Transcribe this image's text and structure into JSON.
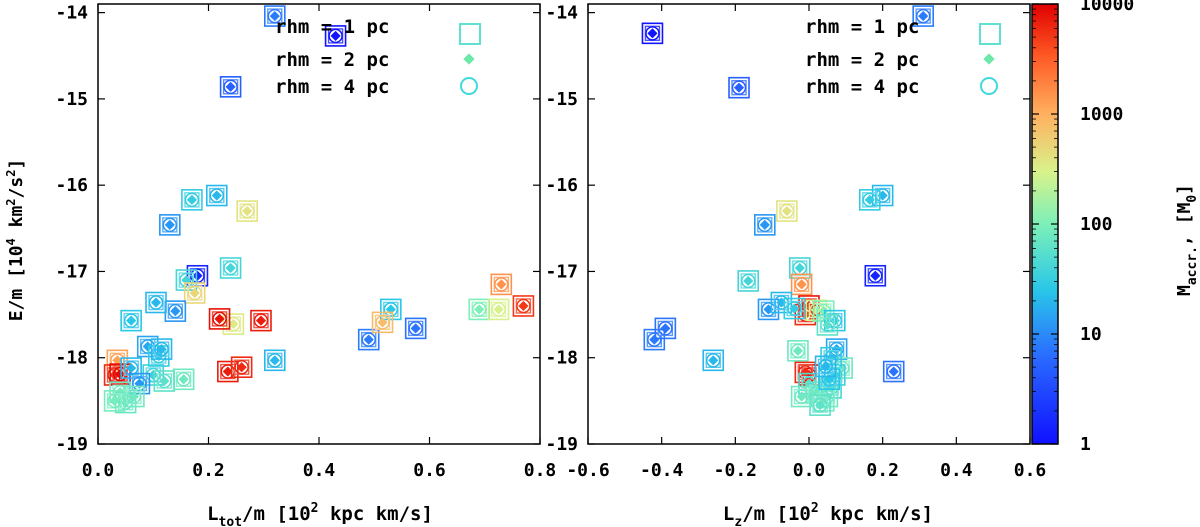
{
  "chart_data": [
    {
      "type": "scatter",
      "xlabel": {
        "base": "L",
        "sub": "tot",
        "rest": "/m [10",
        "sup": "2",
        "tail": " kpc km/s]"
      },
      "ylabel": {
        "base": "E/m [10",
        "sup1": "4",
        "mid": " km",
        "sup2": "2",
        "mid2": "/s",
        "sup3": "2",
        "tail": "]"
      },
      "xlim": [
        0.0,
        0.8
      ],
      "ylim": [
        -19,
        -13.9
      ],
      "x_ticks": [
        "0.0",
        "0.2",
        "0.4",
        "0.6",
        "0.8"
      ],
      "x_tick_values": [
        0.0,
        0.2,
        0.4,
        0.6,
        0.8
      ],
      "y_ticks": [
        "-19",
        "-18",
        "-17",
        "-16",
        "-15",
        "-14"
      ],
      "y_tick_values": [
        -19,
        -18,
        -17,
        -16,
        -15,
        -14
      ],
      "legend": [
        "rhm = 1 pc",
        "rhm = 2 pc",
        "rhm = 4 pc"
      ],
      "legend_position": "top-right",
      "points": [
        [
          0.32,
          -14.04,
          8
        ],
        [
          0.43,
          -14.27,
          1.1
        ],
        [
          0.24,
          -14.86,
          5
        ],
        [
          0.215,
          -16.12,
          20
        ],
        [
          0.17,
          -16.17,
          30
        ],
        [
          0.13,
          -16.46,
          12
        ],
        [
          0.27,
          -16.3,
          400
        ],
        [
          0.24,
          -16.96,
          40
        ],
        [
          0.18,
          -17.05,
          1.5
        ],
        [
          0.16,
          -17.1,
          40
        ],
        [
          0.175,
          -17.25,
          500
        ],
        [
          0.245,
          -17.61,
          350
        ],
        [
          0.22,
          -17.55,
          8000
        ],
        [
          0.295,
          -17.57,
          7000
        ],
        [
          0.14,
          -17.46,
          12
        ],
        [
          0.105,
          -17.36,
          20
        ],
        [
          0.06,
          -17.57,
          25
        ],
        [
          0.09,
          -17.87,
          15
        ],
        [
          0.035,
          -18.03,
          1200
        ],
        [
          0.11,
          -17.98,
          30
        ],
        [
          0.115,
          -17.9,
          20
        ],
        [
          0.03,
          -18.2,
          6000
        ],
        [
          0.04,
          -18.19,
          9000
        ],
        [
          0.06,
          -18.12,
          20
        ],
        [
          0.1,
          -18.2,
          35
        ],
        [
          0.075,
          -18.3,
          12
        ],
        [
          0.12,
          -18.27,
          60
        ],
        [
          0.155,
          -18.25,
          80
        ],
        [
          0.04,
          -18.4,
          80
        ],
        [
          0.05,
          -18.52,
          70
        ],
        [
          0.065,
          -18.45,
          80
        ],
        [
          0.03,
          -18.5,
          90
        ],
        [
          0.235,
          -18.16,
          7000
        ],
        [
          0.26,
          -18.11,
          6000
        ],
        [
          0.32,
          -18.03,
          20
        ],
        [
          0.49,
          -17.79,
          8
        ],
        [
          0.53,
          -17.44,
          25
        ],
        [
          0.515,
          -17.59,
          800
        ],
        [
          0.575,
          -17.66,
          7
        ],
        [
          0.69,
          -17.44,
          100
        ],
        [
          0.725,
          -17.44,
          300
        ],
        [
          0.73,
          -17.15,
          1500
        ],
        [
          0.77,
          -17.4,
          5000
        ]
      ]
    },
    {
      "type": "scatter",
      "xlabel": {
        "base": "L",
        "sub": "z",
        "rest": "/m [10",
        "sup": "2",
        "tail": " kpc km/s]"
      },
      "xlim": [
        -0.6,
        0.6
      ],
      "ylim": [
        -19,
        -13.9
      ],
      "x_ticks": [
        "-0.6",
        "-0.4",
        "-0.2",
        "0.0",
        "0.2",
        "0.4",
        "0.6"
      ],
      "x_tick_values": [
        -0.6,
        -0.4,
        -0.2,
        0.0,
        0.2,
        0.4,
        0.6
      ],
      "y_ticks": [
        "-19",
        "-18",
        "-17",
        "-16",
        "-15",
        "-14"
      ],
      "y_tick_values": [
        -19,
        -18,
        -17,
        -16,
        -15,
        -14
      ],
      "legend": [
        "rhm = 1 pc",
        "rhm = 2 pc",
        "rhm = 4 pc"
      ],
      "legend_position": "top-right",
      "colorbar": {
        "label": "M",
        "label_sub": "accr.",
        "label_tail": ", [M",
        "label_tail_sub": "0",
        "label_end": "]",
        "scale": "log",
        "range": [
          1,
          10000
        ],
        "ticks": [
          "1",
          "10",
          "100",
          "1000",
          "10000"
        ],
        "tick_values": [
          1,
          10,
          100,
          1000,
          10000
        ]
      },
      "points": [
        [
          0.31,
          -14.04,
          8
        ],
        [
          -0.425,
          -14.24,
          1.1
        ],
        [
          -0.19,
          -14.87,
          5
        ],
        [
          0.2,
          -16.12,
          20
        ],
        [
          0.165,
          -16.17,
          30
        ],
        [
          -0.12,
          -16.46,
          12
        ],
        [
          -0.06,
          -16.3,
          400
        ],
        [
          -0.025,
          -16.96,
          40
        ],
        [
          0.18,
          -17.05,
          1.5
        ],
        [
          -0.165,
          -17.11,
          40
        ],
        [
          -0.02,
          -17.15,
          1500
        ],
        [
          0.0,
          -17.4,
          8000
        ],
        [
          -0.01,
          -17.5,
          6000
        ],
        [
          0.02,
          -17.45,
          300
        ],
        [
          -0.11,
          -17.44,
          12
        ],
        [
          -0.075,
          -17.36,
          20
        ],
        [
          -0.04,
          -17.43,
          30
        ],
        [
          0.04,
          -17.46,
          100
        ],
        [
          0.07,
          -17.57,
          25
        ],
        [
          0.075,
          -17.9,
          15
        ],
        [
          0.05,
          -17.62,
          60
        ],
        [
          -0.42,
          -17.79,
          8
        ],
        [
          -0.39,
          -17.66,
          7
        ],
        [
          -0.26,
          -18.03,
          20
        ],
        [
          0.23,
          -18.16,
          7
        ],
        [
          0.09,
          -18.12,
          80
        ],
        [
          0.06,
          -18.0,
          30
        ],
        [
          -0.03,
          -17.92,
          80
        ],
        [
          0.0,
          -18.2,
          9000
        ],
        [
          -0.01,
          -18.17,
          6000
        ],
        [
          0.0,
          -18.3,
          50
        ],
        [
          0.02,
          -18.4,
          70
        ],
        [
          0.04,
          -18.5,
          90
        ],
        [
          0.06,
          -18.35,
          40
        ],
        [
          0.05,
          -18.45,
          80
        ],
        [
          0.03,
          -18.55,
          60
        ],
        [
          -0.02,
          -18.45,
          80
        ],
        [
          0.07,
          -18.2,
          35
        ],
        [
          0.055,
          -18.25,
          25
        ],
        [
          0.045,
          -18.1,
          20
        ]
      ]
    }
  ]
}
